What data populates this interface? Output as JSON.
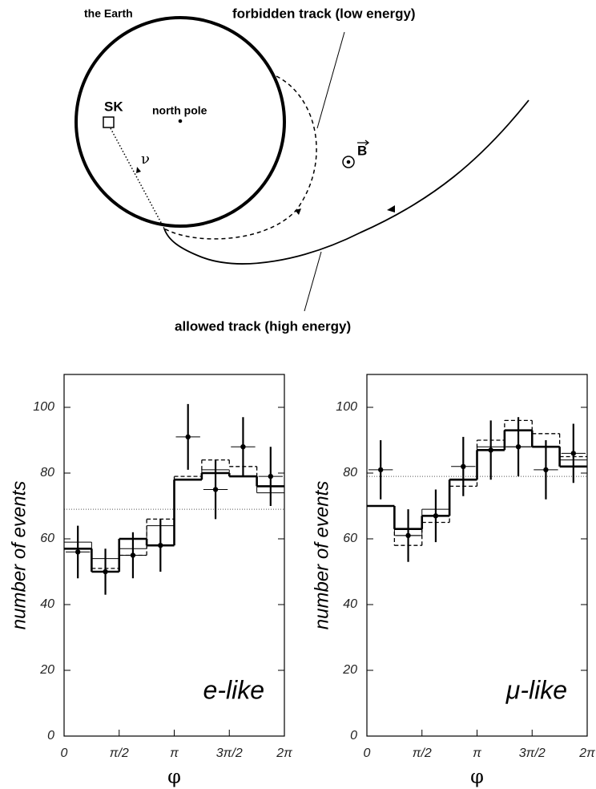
{
  "diagram": {
    "earth_label": "the Earth",
    "forbidden_label": "forbidden track (low energy)",
    "allowed_label": "allowed track (high energy)",
    "detector": "SK",
    "pole": "north pole",
    "neutrino": "ν",
    "field": "B"
  },
  "chart_data": [
    {
      "type": "histogram",
      "annotation": "e-like",
      "xlabel": "φ",
      "ylabel": "number of events",
      "xlim": [
        0,
        6.2832
      ],
      "ylim": [
        0,
        110
      ],
      "xticks": [
        0,
        {
          "value": 1.5708,
          "label": "π/2"
        },
        {
          "value": 3.1416,
          "label": "π"
        },
        {
          "value": 4.7124,
          "label": "3π/2"
        },
        {
          "value": 6.2832,
          "label": "2π"
        }
      ],
      "yticks": [
        0,
        20,
        40,
        60,
        80,
        100
      ],
      "bins": [
        0,
        0.7854,
        1.5708,
        2.3562,
        3.1416,
        3.927,
        4.7124,
        5.4978,
        6.2832
      ],
      "series": [
        {
          "line": "thick",
          "values": [
            57,
            50,
            60,
            58,
            78,
            80,
            79,
            76
          ]
        },
        {
          "line": "thin",
          "values": [
            59,
            54,
            57,
            64,
            78,
            81,
            79,
            74
          ]
        },
        {
          "line": "dashed",
          "values": [
            57,
            51,
            55,
            66,
            79,
            84,
            82,
            76
          ]
        }
      ],
      "reference": 69,
      "points": {
        "x": [
          0.3927,
          1.1781,
          1.9635,
          2.7489,
          3.5343,
          4.3197,
          5.1051,
          5.8905
        ],
        "values": [
          56,
          50,
          55,
          58,
          91,
          75,
          88,
          79
        ],
        "errors": [
          8,
          7,
          7,
          8,
          10,
          9,
          9,
          9
        ]
      }
    },
    {
      "type": "histogram",
      "annotation": "μ-like",
      "xlabel": "φ",
      "ylabel": "number of events",
      "xlim": [
        0,
        6.2832
      ],
      "ylim": [
        0,
        110
      ],
      "xticks": [
        0,
        {
          "value": 1.5708,
          "label": "π/2"
        },
        {
          "value": 3.1416,
          "label": "π"
        },
        {
          "value": 4.7124,
          "label": "3π/2"
        },
        {
          "value": 6.2832,
          "label": "2π"
        }
      ],
      "yticks": [
        0,
        20,
        40,
        60,
        80,
        100
      ],
      "bins": [
        0,
        0.7854,
        1.5708,
        2.3562,
        3.1416,
        3.927,
        4.7124,
        5.4978,
        6.2832
      ],
      "series": [
        {
          "line": "thick",
          "values": [
            70,
            63,
            67,
            78,
            87,
            93,
            88,
            82
          ]
        },
        {
          "line": "thin",
          "values": [
            70,
            61,
            69,
            78,
            88,
            88,
            88,
            84
          ]
        },
        {
          "line": "dashed",
          "values": [
            70,
            58,
            65,
            76,
            90,
            96,
            92,
            85
          ]
        }
      ],
      "reference": 79,
      "points": {
        "x": [
          0.3927,
          1.1781,
          1.9635,
          2.7489,
          3.5343,
          4.3197,
          5.1051,
          5.8905
        ],
        "values": [
          81,
          61,
          67,
          82,
          87,
          88,
          81,
          86
        ],
        "errors": [
          9,
          8,
          8,
          9,
          9,
          9,
          9,
          9
        ]
      }
    }
  ]
}
